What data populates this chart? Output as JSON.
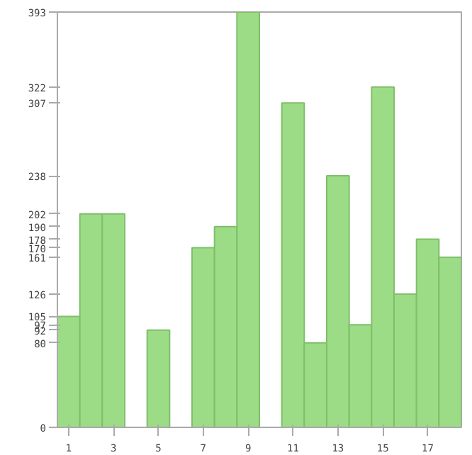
{
  "chart_data": {
    "type": "bar",
    "x": [
      1,
      2,
      3,
      4,
      5,
      6,
      7,
      8,
      9,
      10,
      11,
      12,
      13,
      14,
      15,
      16,
      17,
      18
    ],
    "values": [
      105,
      202,
      202,
      0,
      92,
      0,
      170,
      190,
      393,
      0,
      307,
      80,
      238,
      97,
      322,
      126,
      178,
      161
    ],
    "color": "#9ddc87",
    "xlim": [
      0.5,
      18.5
    ],
    "xticks": [
      1,
      3,
      5,
      7,
      9,
      11,
      13,
      15,
      17
    ],
    "ylim": [
      0,
      393
    ],
    "yticks": [
      0,
      80,
      92,
      97,
      105,
      126,
      161,
      170,
      178,
      190,
      202,
      238,
      307,
      322,
      393
    ],
    "grid": false
  }
}
